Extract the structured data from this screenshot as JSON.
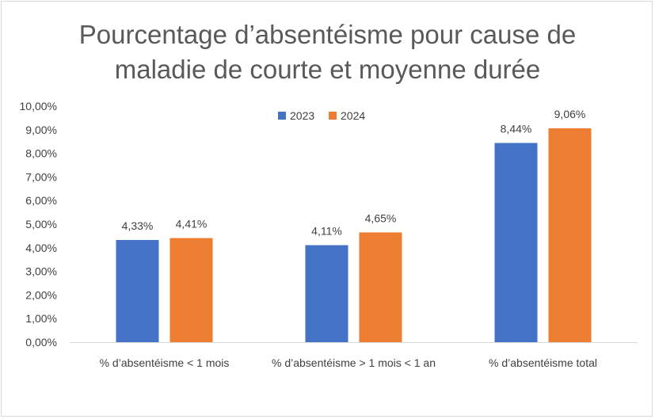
{
  "chart_data": {
    "type": "bar",
    "title_line1": "Pourcentage d’absentéisme pour cause de",
    "title_line2": "maladie de courte et moyenne durée",
    "categories": [
      "% d’absentéisme < 1 mois",
      "% d’absentéisme > 1 mois < 1 an",
      "% d’absentéisme total"
    ],
    "series": [
      {
        "name": "2023",
        "color": "#4472c4",
        "values": [
          4.33,
          4.11,
          8.44
        ],
        "labels": [
          "4,33%",
          "4,11%",
          "8,44%"
        ]
      },
      {
        "name": "2024",
        "color": "#ed7d31",
        "values": [
          4.41,
          4.65,
          9.06
        ],
        "labels": [
          "4,41%",
          "4,65%",
          "9,06%"
        ]
      }
    ],
    "ylim": [
      0,
      10
    ],
    "yticks": [
      "0,00%",
      "1,00%",
      "2,00%",
      "3,00%",
      "4,00%",
      "5,00%",
      "6,00%",
      "7,00%",
      "8,00%",
      "9,00%",
      "10,00%"
    ],
    "legend_position": "top-center",
    "grid": false
  }
}
